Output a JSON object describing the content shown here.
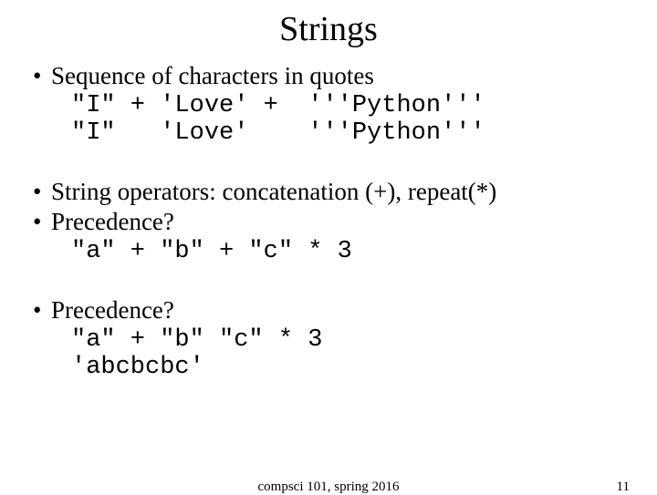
{
  "title": "Strings",
  "bullets": {
    "b1": "Sequence of characters in quotes",
    "b2": "String operators: concatenation (+), repeat(*)",
    "b3": "Precedence?",
    "b4": "Precedence?"
  },
  "code": {
    "c1_line1": "\"I\" + 'Love' +  '''Python'''",
    "c1_line2": "\"I\"   'Love'    '''Python'''",
    "c2": "\"a\" + \"b\" + \"c\" * 3",
    "c3_line1": "\"a\" + \"b\" \"c\" * 3",
    "c3_line2": "'abcbcbc'"
  },
  "footer": {
    "center": "compsci 101, spring 2016",
    "page": "11"
  },
  "colors": {
    "bg": "#ffffff",
    "text": "#000000"
  },
  "fonts": {
    "body": "Times New Roman",
    "code": "Courier New",
    "title_size": 38,
    "body_size": 27,
    "footer_size": 15
  }
}
